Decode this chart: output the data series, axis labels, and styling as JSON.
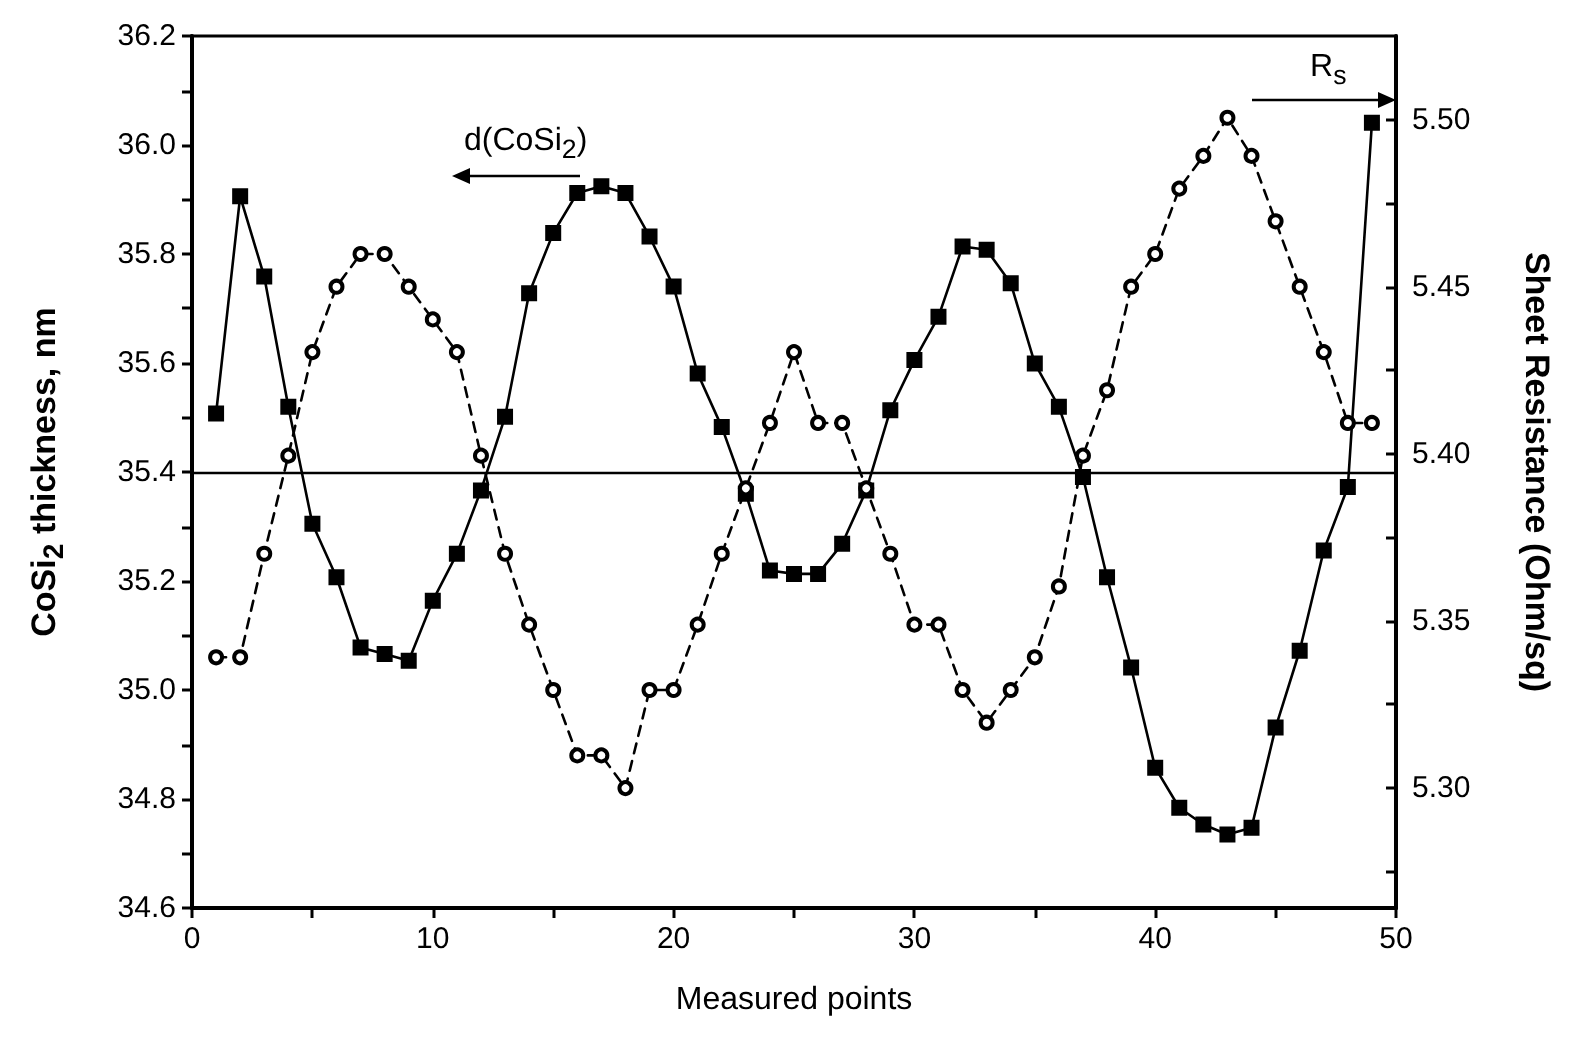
{
  "chart_data": {
    "type": "line",
    "xlabel": "Measured points",
    "ylabel": "CoSi$_{2}$ thickness, nm",
    "y2label": "Sheet Resistance (Ohm/sq)",
    "x": [
      1,
      2,
      3,
      4,
      5,
      6,
      7,
      8,
      9,
      10,
      11,
      12,
      13,
      14,
      15,
      16,
      17,
      18,
      19,
      20,
      21,
      22,
      23,
      24,
      25,
      26,
      27,
      28,
      29,
      30,
      31,
      32,
      33,
      34,
      35,
      36,
      37,
      38,
      39,
      40,
      41,
      42,
      43,
      44,
      45,
      46,
      47,
      48,
      49
    ],
    "series": [
      {
        "color": "#000000",
        "marker": "circle",
        "line_style": "dashed",
        "values": [
          35.06,
          35.06,
          35.25,
          35.43,
          35.62,
          35.74,
          35.8,
          35.8,
          35.74,
          35.68,
          35.62,
          35.43,
          35.25,
          35.12,
          35.0,
          34.88,
          34.88,
          34.82,
          35.0,
          35.0,
          35.12,
          35.25,
          35.37,
          35.49,
          35.62,
          35.49,
          35.49,
          35.37,
          35.25,
          35.12,
          35.12,
          35.0,
          34.94,
          35.0,
          35.06,
          35.19,
          35.43,
          35.55,
          35.74,
          35.8,
          35.92,
          35.98,
          36.05,
          35.98,
          35.86,
          35.74,
          35.62,
          35.49,
          35.49
        ]
      },
      {
        "color": "#000000",
        "marker": "square",
        "line_style": "solid",
        "axis": "y2",
        "values": [
          5.412,
          5.477,
          5.453,
          5.414,
          5.379,
          5.363,
          5.342,
          5.34,
          5.338,
          5.356,
          5.37,
          5.389,
          5.411,
          5.448,
          5.466,
          5.478,
          5.48,
          5.478,
          5.465,
          5.45,
          5.424,
          5.408,
          5.388,
          5.365,
          5.364,
          5.364,
          5.373,
          5.389,
          5.413,
          5.428,
          5.441,
          5.462,
          5.461,
          5.451,
          5.427,
          5.414,
          5.393,
          5.363,
          5.336,
          5.306,
          5.294,
          5.289,
          5.286,
          5.288,
          5.318,
          5.341,
          5.371,
          5.39,
          5.499
        ]
      }
    ],
    "xlim": [
      0,
      50
    ],
    "xticks": [
      0,
      {
        "value": 5,
        "label": null
      },
      10,
      {
        "value": 15,
        "label": null
      },
      20,
      {
        "value": 25,
        "label": null
      },
      30,
      {
        "value": 35,
        "label": null
      },
      40,
      {
        "value": 45,
        "label": null
      },
      50
    ],
    "ylim": [
      34.6,
      36.2
    ],
    "yticks": [
      34.6,
      {
        "value": 34.7,
        "label": null
      },
      34.8,
      {
        "value": 34.9,
        "label": null
      },
      {
        "value": 35,
        "label": "35.0"
      },
      {
        "value": 35.1,
        "label": null
      },
      35.2,
      {
        "value": 35.3,
        "label": null
      },
      35.4,
      {
        "value": 35.5,
        "label": null
      },
      35.6,
      {
        "value": 35.7,
        "label": null
      },
      35.8,
      {
        "value": 35.9,
        "label": null
      },
      {
        "value": 36,
        "label": "36.0"
      },
      {
        "value": 36.1,
        "label": null
      },
      36.2
    ],
    "y2lim": [
      5.264,
      5.525
    ],
    "y2ticks": [
      {
        "value": 5.275,
        "label": null
      },
      {
        "value": 5.3,
        "label": "5.30"
      },
      {
        "value": 5.325,
        "label": null
      },
      5.35,
      {
        "value": 5.375,
        "label": null
      },
      {
        "value": 5.4,
        "label": "5.40"
      },
      {
        "value": 5.425,
        "label": null
      },
      5.45,
      {
        "value": 5.475,
        "label": null
      },
      {
        "value": 5.5,
        "label": "5.50"
      }
    ],
    "ref_lines": [
      {
        "axis": "y",
        "value": 35.4,
        "color": "#000000",
        "line_style": "solid"
      }
    ],
    "annotations": [
      "d(CoSi$_{2}$)",
      "R$_{s}$"
    ],
    "grid": false
  }
}
